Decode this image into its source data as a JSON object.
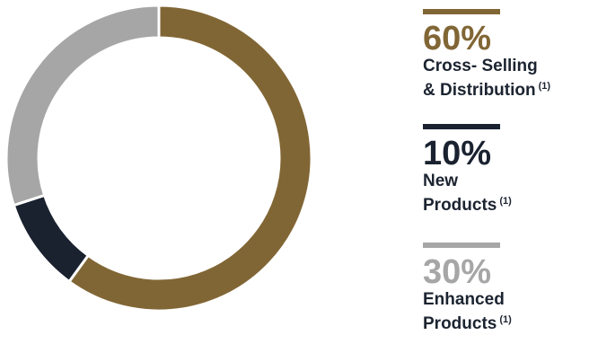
{
  "chart_data": {
    "type": "pie",
    "style": "donut",
    "title": "",
    "slices": [
      {
        "label_line1": "Cross- Selling",
        "label_line2": "& Distribution",
        "note": "(1)",
        "value": 60,
        "value_label": "60%",
        "color": "#816635"
      },
      {
        "label_line1": "New",
        "label_line2": "Products",
        "note": "(1)",
        "value": 10,
        "value_label": "10%",
        "color": "#1a2230"
      },
      {
        "label_line1": "Enhanced",
        "label_line2": "Products",
        "note": "(1)",
        "value": 30,
        "value_label": "30%",
        "color": "#a6a6a6"
      }
    ],
    "legend_position": "right"
  }
}
